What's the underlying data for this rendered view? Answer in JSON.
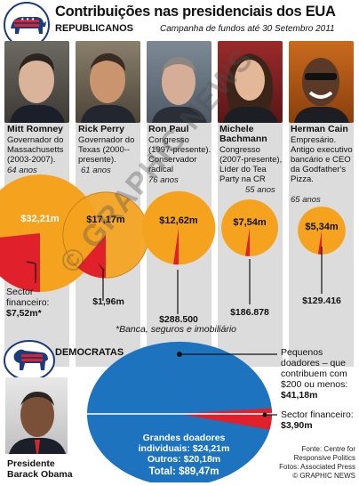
{
  "header": {
    "title": "Contribuições nas presidenciais dos EUA",
    "section_label": "REPUBLICANOS",
    "subtitle": "Campanha de fundos até 30 Setembro 2011"
  },
  "candidates": [
    {
      "name": "Mitt Romney",
      "desc": "Governador do Massachusetts (2003-2007).",
      "age": "64 anos",
      "total": "$32,21m",
      "financial": "$7,52m*",
      "total_value": 32.21,
      "financial_value": 7.52
    },
    {
      "name": "Rick Perry",
      "desc": "Governador do Texas (2000--presente).",
      "age": "61 anos",
      "total": "$17,17m",
      "financial": "$1,96m",
      "total_value": 17.17,
      "financial_value": 1.96
    },
    {
      "name": "Ron Paul",
      "desc": "Congresso (1997-presente). Conservador radical",
      "age": "76 anos",
      "total": "$12,62m",
      "financial": "$288.500",
      "total_value": 12.62,
      "financial_value": 0.2885
    },
    {
      "name": "Michele Bachmann",
      "desc": "Congresso (2007-presente), Líder do Tea Party na CR",
      "age": "55 anos",
      "total": "$7,54m",
      "financial": "$186.878",
      "total_value": 7.54,
      "financial_value": 0.186878
    },
    {
      "name": "Herman Cain",
      "desc": "Empresário. Antigo executivo bancário e CEO da Godfather's Pizza.",
      "age": "65 anos",
      "total": "$5,34m",
      "financial": "$129.416",
      "total_value": 5.34,
      "financial_value": 0.129416
    }
  ],
  "sector_label": "Sector financeiro:",
  "footnote": "*Banca, seguros e imobiliário",
  "democrats": {
    "section_label": "DEMOCRATAS",
    "candidate_title": "Presidente",
    "candidate_name": "Barack Obama",
    "small_donors_label": "Pequenos doadores – que contribuem com $200 ou menos:",
    "small_donors_value": "$41,18m",
    "financial_label": "Sector financeiro:",
    "financial_value": "$3,90m",
    "big_donors_label": "Grandes doadores individuais: $24,21m",
    "others_label": "Outros: $20,18m",
    "total_label": "Total: $89,47m"
  },
  "credits": {
    "source": "Fonte: Centre for Responsive Politics",
    "photos": "Fotos: Associated Press",
    "copyright": "© GRAPHIC NEWS"
  },
  "watermark": "© GRAPHIC NEWS",
  "colors": {
    "orange": "#f5a31e",
    "red": "#e0202a",
    "blue": "#1e73be",
    "navy": "#1c3b7a"
  }
}
